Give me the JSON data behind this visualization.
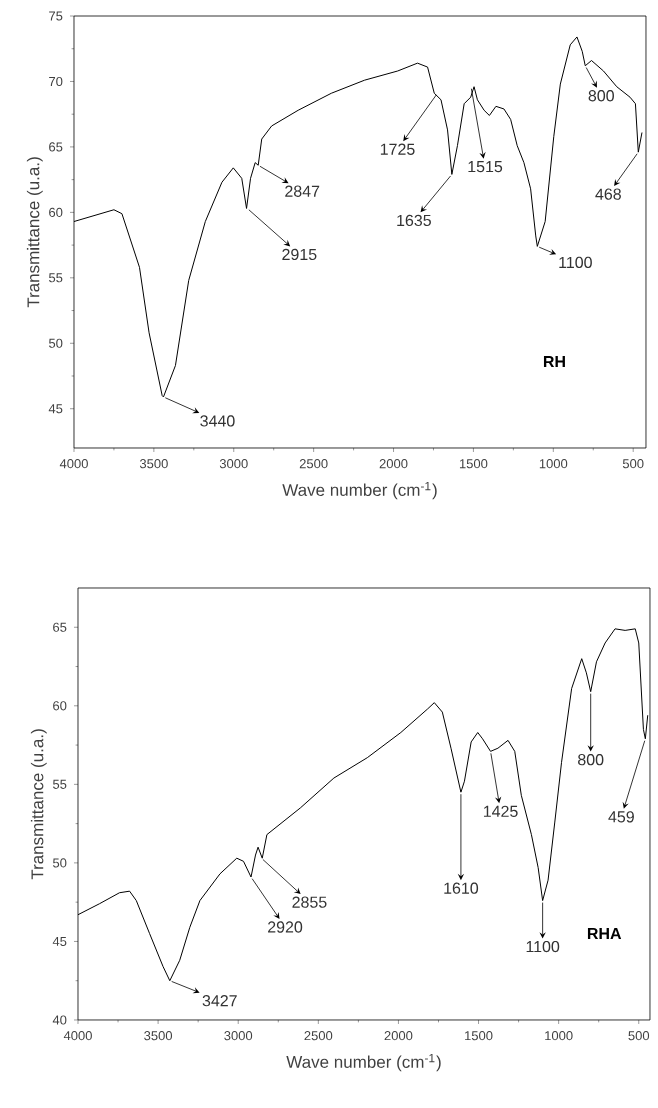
{
  "chart_data": [
    {
      "type": "line",
      "xlabel": "Wave number (cm$^{-1}$)",
      "ylabel": "Transmittance (u.a.)",
      "color": "#000000",
      "xlim": [
        4000,
        420
      ],
      "ylim": [
        42,
        75
      ],
      "xticks": [
        4000,
        3500,
        3000,
        2500,
        2000,
        1500,
        1000,
        500
      ],
      "yticks": [
        45,
        50,
        55,
        60,
        65,
        70,
        75
      ],
      "x": [
        4000,
        3750,
        3700,
        3590,
        3530,
        3448,
        3440,
        3365,
        3282,
        3178,
        3074,
        3003,
        2950,
        2920,
        2895,
        2866,
        2847,
        2825,
        2763,
        2597,
        2389,
        2181,
        1974,
        1850,
        1787,
        1745,
        1703,
        1662,
        1635,
        1600,
        1558,
        1517,
        1496,
        1475,
        1433,
        1400,
        1359,
        1309,
        1267,
        1226,
        1184,
        1142,
        1110,
        1100,
        1051,
        997,
        956,
        894,
        852,
        819,
        800,
        761,
        686,
        603,
        520,
        486,
        468,
        445
      ],
      "values": [
        59.3,
        60.2,
        59.9,
        55.8,
        50.8,
        46.0,
        45.9,
        48.3,
        54.8,
        59.3,
        62.3,
        63.4,
        62.6,
        60.3,
        62.6,
        63.8,
        63.6,
        65.6,
        66.6,
        67.8,
        69.1,
        70.1,
        70.8,
        71.4,
        71.1,
        69.1,
        68.6,
        66.3,
        62.9,
        65.1,
        68.3,
        68.8,
        69.6,
        68.6,
        67.8,
        67.4,
        68.1,
        67.9,
        67.1,
        65.1,
        63.8,
        61.8,
        58.2,
        57.4,
        59.3,
        65.8,
        69.8,
        72.8,
        73.4,
        72.3,
        71.2,
        71.6,
        70.8,
        69.6,
        68.8,
        68.3,
        64.6,
        66.1
      ],
      "annotations": [
        {
          "text": "3440",
          "x": 3440,
          "y": 45.9
        },
        {
          "text": "2915",
          "x": 2915,
          "y": 60.3
        },
        {
          "text": "2847",
          "x": 2847,
          "y": 63.6
        },
        {
          "text": "1725",
          "x": 1725,
          "y": 69.1
        },
        {
          "text": "1635",
          "x": 1635,
          "y": 62.9
        },
        {
          "text": "1515",
          "x": 1515,
          "y": 69.6
        },
        {
          "text": "1100",
          "x": 1100,
          "y": 57.4
        },
        {
          "text": "800",
          "x": 800,
          "y": 71.2
        },
        {
          "text": "468",
          "x": 468,
          "y": 64.6
        },
        "RH"
      ]
    },
    {
      "type": "line",
      "xlabel": "Wave number (cm$^{-1}$)",
      "ylabel": "Transmittance (u.a.)",
      "color": "#000000",
      "xlim": [
        4000,
        430
      ],
      "ylim": [
        40,
        67.5
      ],
      "xticks": [
        4000,
        3500,
        3000,
        2500,
        2000,
        1500,
        1000,
        500
      ],
      "yticks": [
        40,
        45,
        50,
        55,
        60,
        65
      ],
      "x": [
        4000,
        3866,
        3741,
        3678,
        3636,
        3553,
        3469,
        3427,
        3365,
        3302,
        3239,
        3114,
        3009,
        2967,
        2920,
        2892,
        2876,
        2850,
        2821,
        2612,
        2403,
        2194,
        1985,
        1818,
        1776,
        1726,
        1672,
        1610,
        1588,
        1546,
        1505,
        1475,
        1425,
        1379,
        1316,
        1274,
        1233,
        1170,
        1128,
        1100,
        1066,
        1024,
        982,
        919,
        856,
        827,
        800,
        764,
        710,
        648,
        585,
        522,
        500,
        471,
        459,
        444
      ],
      "values": [
        46.7,
        47.4,
        48.1,
        48.2,
        47.6,
        45.5,
        43.4,
        42.5,
        43.8,
        45.9,
        47.6,
        49.3,
        50.3,
        50.1,
        49.1,
        50.5,
        51.0,
        50.3,
        51.8,
        53.5,
        55.4,
        56.7,
        58.3,
        59.8,
        60.2,
        59.6,
        57.3,
        54.5,
        55.2,
        57.7,
        58.3,
        57.9,
        57.1,
        57.3,
        57.8,
        57.1,
        54.3,
        51.8,
        49.7,
        47.6,
        48.9,
        52.6,
        56.4,
        61.1,
        63.0,
        62.1,
        60.9,
        62.8,
        64.0,
        64.9,
        64.8,
        64.9,
        64.0,
        58.5,
        57.9,
        59.4
      ],
      "annotations": [
        {
          "text": "3427",
          "x": 3427,
          "y": 42.5
        },
        {
          "text": "2920",
          "x": 2920,
          "y": 49.1
        },
        {
          "text": "2855",
          "x": 2855,
          "y": 50.3
        },
        {
          "text": "1610",
          "x": 1610,
          "y": 54.5
        },
        {
          "text": "1425",
          "x": 1425,
          "y": 57.1
        },
        {
          "text": "1100",
          "x": 1100,
          "y": 47.6
        },
        {
          "text": "800",
          "x": 800,
          "y": 60.9
        },
        {
          "text": "459",
          "x": 459,
          "y": 57.9
        },
        "RHA"
      ]
    }
  ]
}
